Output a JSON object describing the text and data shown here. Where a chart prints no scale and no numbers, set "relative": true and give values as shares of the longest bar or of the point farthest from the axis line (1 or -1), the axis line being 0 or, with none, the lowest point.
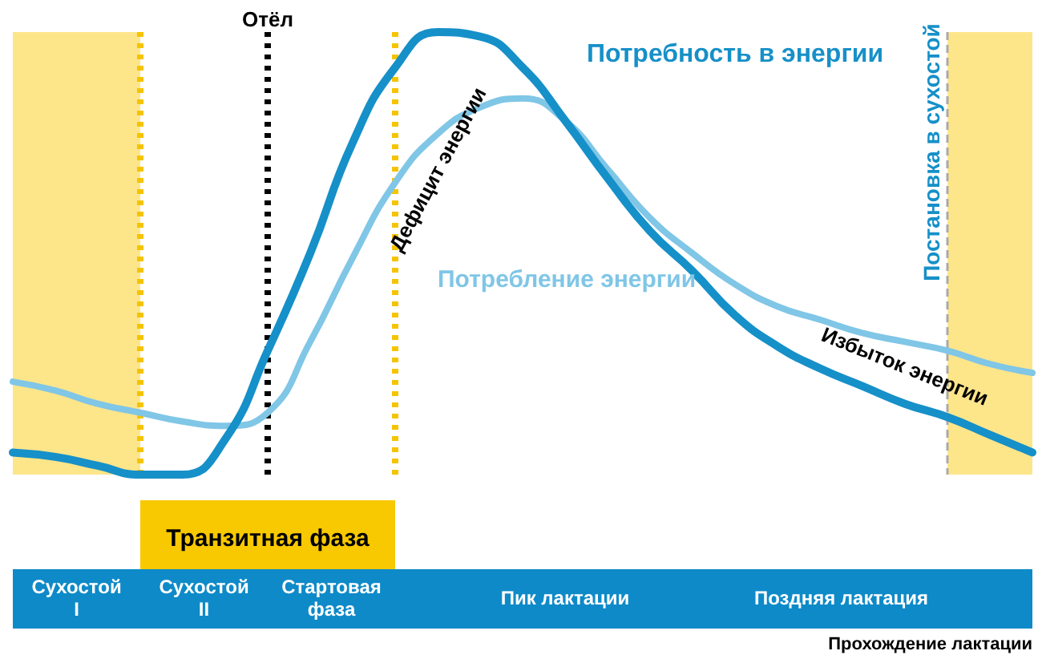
{
  "chart_data": {
    "type": "line",
    "relative": true,
    "categories": [
      null,
      null,
      null,
      null,
      null,
      null,
      null,
      null,
      null,
      null,
      null,
      null,
      null,
      null,
      null,
      null,
      null,
      null,
      null,
      null,
      null,
      null,
      null,
      null,
      null
    ],
    "series": [
      {
        "name": "Потребность в энергии",
        "color": "#1690c8",
        "values": [
          0.05,
          0.04,
          0.02,
          0,
          0,
          0.08,
          0.28,
          0.5,
          0.75,
          0.92,
          1,
          0.99,
          0.92,
          0.8,
          0.67,
          0.55,
          0.46,
          0.36,
          0.29,
          0.24,
          0.2,
          0.16,
          0.13,
          0.09,
          0.05
        ]
      },
      {
        "name": "Потребление энергии",
        "color": "#80c6e6",
        "values": [
          0.21,
          0.19,
          0.16,
          0.14,
          0.12,
          0.11,
          0.14,
          0.3,
          0.49,
          0.66,
          0.77,
          0.83,
          0.85,
          0.8,
          0.69,
          0.58,
          0.5,
          0.43,
          0.38,
          0.35,
          0.32,
          0.3,
          0.28,
          0.25,
          0.23
        ]
      }
    ],
    "annotations": [
      "Отёл",
      "Постановка в сухостой",
      "Дефицит энергии",
      "Избыток энергии",
      "Транзитная фаза",
      "Сухостой I",
      "Сухостой II",
      "Стартовая фаза",
      "Пик лактации",
      "Поздняя лактация",
      "Прохождение лактации"
    ],
    "grid": false,
    "legend": false,
    "marker": "none",
    "line_style": "solid"
  }
}
